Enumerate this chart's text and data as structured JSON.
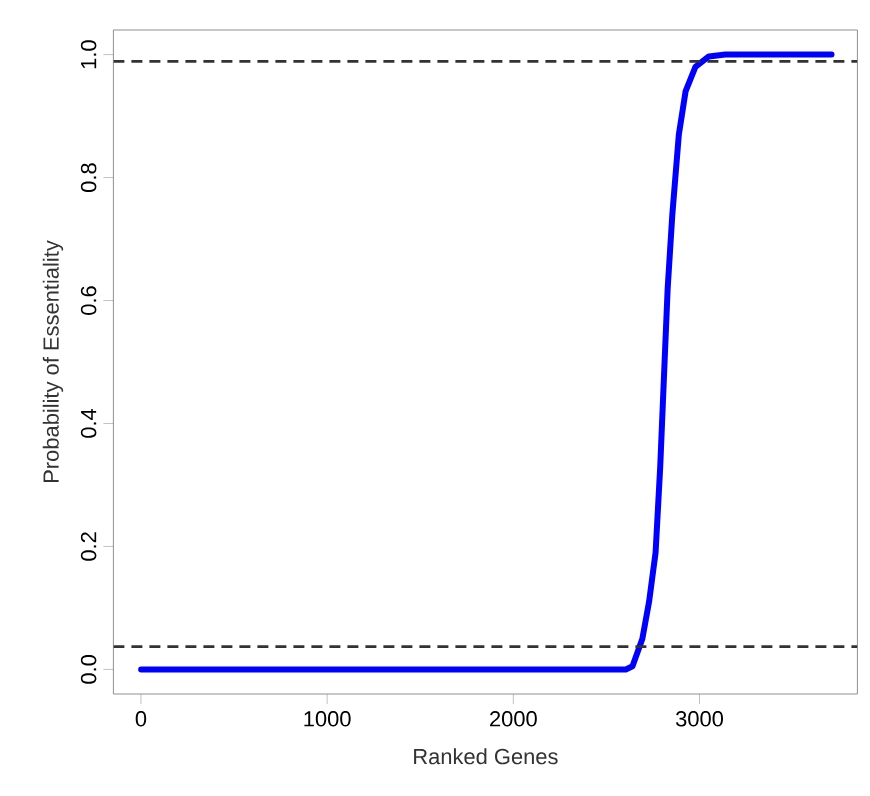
{
  "chart_data": {
    "type": "line",
    "xlabel": "Ranked Genes",
    "ylabel": "Probability of Essentiality",
    "xlim": [
      -148,
      3848
    ],
    "ylim": [
      -0.04,
      1.04
    ],
    "xticks": [
      0,
      1000,
      2000,
      3000
    ],
    "yticks": [
      {
        "value": 0,
        "label": "0.0"
      },
      {
        "value": 0.2,
        "label": "0.2"
      },
      {
        "value": 0.4,
        "label": "0.4"
      },
      {
        "value": 0.6,
        "label": "0.6"
      },
      {
        "value": 0.8,
        "label": "0.8"
      },
      {
        "value": 1,
        "label": "1.0"
      }
    ],
    "grid": false,
    "ref_lines": [
      {
        "axis": "y",
        "value": 0.989,
        "color": "#333333",
        "line_style": "dashed"
      },
      {
        "axis": "y",
        "value": 0.037,
        "color": "#333333",
        "line_style": "dashed"
      }
    ],
    "series": [
      {
        "color": "#0000ff",
        "x": [
          1,
          1000,
          2000,
          2604,
          2640,
          2693,
          2729,
          2764,
          2789,
          2811,
          2829,
          2854,
          2889,
          2925,
          2978,
          3050,
          3139,
          3709
        ],
        "values": [
          0,
          0,
          0,
          0,
          0.005,
          0.05,
          0.11,
          0.19,
          0.33,
          0.49,
          0.62,
          0.74,
          0.87,
          0.94,
          0.98,
          0.997,
          1.0,
          1.0
        ]
      }
    ]
  }
}
